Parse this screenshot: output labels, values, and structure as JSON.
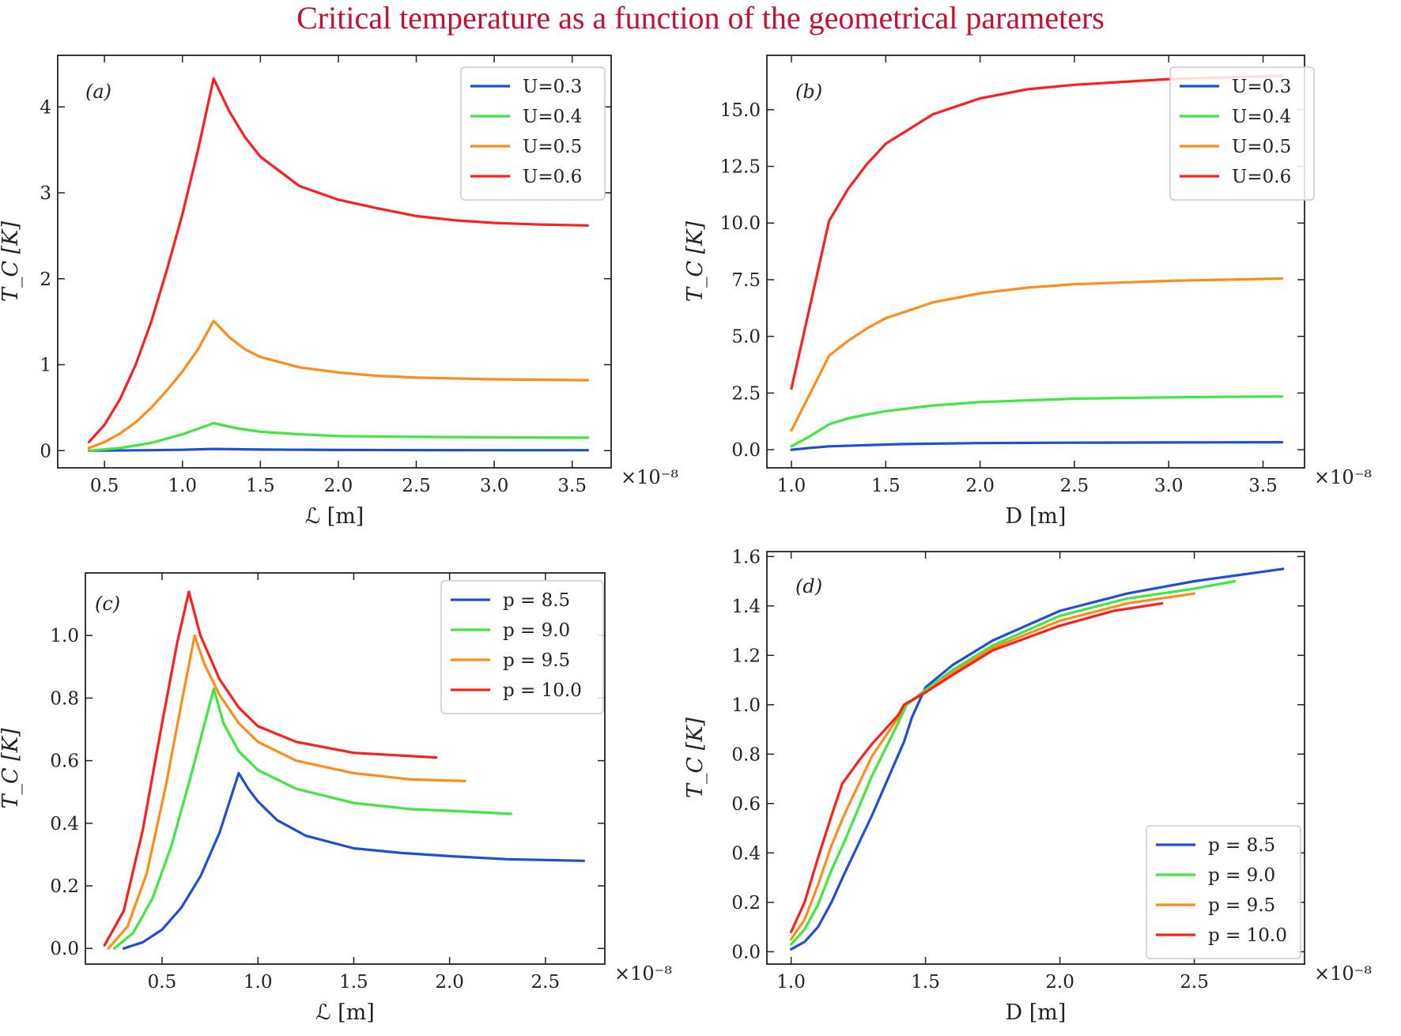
{
  "figure_title": "Critical temperature as a function of the geometrical parameters",
  "chart_data": [
    {
      "type": "line",
      "panel_label": "(a)",
      "xlabel": "ℒ [m]",
      "ylabel": "T_C [K]",
      "x_multiplier": "×10⁻⁸",
      "xlim": [
        0.2,
        3.75
      ],
      "ylim": [
        -0.2,
        4.6
      ],
      "xticks": [
        0.5,
        1.0,
        1.5,
        2.0,
        2.5,
        3.0,
        3.5
      ],
      "yticks": [
        0,
        1,
        2,
        3,
        4
      ],
      "xtick_labels": [
        "0.5",
        "1.0",
        "1.5",
        "2.0",
        "2.5",
        "3.0",
        "3.5"
      ],
      "ytick_labels": [
        "0",
        "1",
        "2",
        "3",
        "4"
      ],
      "legend_position": "top-right",
      "series": [
        {
          "name": "U=0.3",
          "color": "#1f4fd6",
          "points": [
            [
              0.4,
              0.0
            ],
            [
              0.8,
              0.005
            ],
            [
              1.0,
              0.01
            ],
            [
              1.2,
              0.02
            ],
            [
              1.5,
              0.012
            ],
            [
              2.0,
              0.008
            ],
            [
              2.5,
              0.006
            ],
            [
              3.0,
              0.005
            ],
            [
              3.6,
              0.005
            ]
          ]
        },
        {
          "name": "U=0.4",
          "color": "#3ee83e",
          "points": [
            [
              0.4,
              0.0
            ],
            [
              0.6,
              0.03
            ],
            [
              0.8,
              0.09
            ],
            [
              1.0,
              0.19
            ],
            [
              1.2,
              0.32
            ],
            [
              1.35,
              0.26
            ],
            [
              1.5,
              0.22
            ],
            [
              1.75,
              0.19
            ],
            [
              2.0,
              0.17
            ],
            [
              2.5,
              0.16
            ],
            [
              3.0,
              0.155
            ],
            [
              3.6,
              0.15
            ]
          ]
        },
        {
          "name": "U=0.5",
          "color": "#ff8c1a",
          "points": [
            [
              0.4,
              0.03
            ],
            [
              0.5,
              0.1
            ],
            [
              0.6,
              0.2
            ],
            [
              0.7,
              0.33
            ],
            [
              0.8,
              0.5
            ],
            [
              0.9,
              0.7
            ],
            [
              1.0,
              0.92
            ],
            [
              1.1,
              1.18
            ],
            [
              1.2,
              1.51
            ],
            [
              1.3,
              1.32
            ],
            [
              1.4,
              1.18
            ],
            [
              1.5,
              1.09
            ],
            [
              1.75,
              0.97
            ],
            [
              2.0,
              0.91
            ],
            [
              2.25,
              0.87
            ],
            [
              2.5,
              0.85
            ],
            [
              3.0,
              0.83
            ],
            [
              3.6,
              0.82
            ]
          ]
        },
        {
          "name": "U=0.6",
          "color": "#ff1e1e",
          "points": [
            [
              0.4,
              0.1
            ],
            [
              0.5,
              0.3
            ],
            [
              0.6,
              0.6
            ],
            [
              0.7,
              1.0
            ],
            [
              0.8,
              1.5
            ],
            [
              0.9,
              2.1
            ],
            [
              1.0,
              2.75
            ],
            [
              1.1,
              3.5
            ],
            [
              1.2,
              4.33
            ],
            [
              1.3,
              3.95
            ],
            [
              1.4,
              3.65
            ],
            [
              1.5,
              3.42
            ],
            [
              1.75,
              3.08
            ],
            [
              2.0,
              2.92
            ],
            [
              2.25,
              2.82
            ],
            [
              2.5,
              2.73
            ],
            [
              2.75,
              2.68
            ],
            [
              3.0,
              2.65
            ],
            [
              3.3,
              2.63
            ],
            [
              3.6,
              2.62
            ]
          ]
        }
      ]
    },
    {
      "type": "line",
      "panel_label": "(b)",
      "xlabel": "D [m]",
      "ylabel": "T_C [K]",
      "x_multiplier": "×10⁻⁸",
      "xlim": [
        0.87,
        3.72
      ],
      "ylim": [
        -0.8,
        17.4
      ],
      "xticks": [
        1.0,
        1.5,
        2.0,
        2.5,
        3.0,
        3.5
      ],
      "yticks": [
        0.0,
        2.5,
        5.0,
        7.5,
        10.0,
        12.5,
        15.0
      ],
      "xtick_labels": [
        "1.0",
        "1.5",
        "2.0",
        "2.5",
        "3.0",
        "3.5"
      ],
      "ytick_labels": [
        "0.0",
        "2.5",
        "5.0",
        "7.5",
        "10.0",
        "12.5",
        "15.0"
      ],
      "legend_position": "top-right",
      "series": [
        {
          "name": "U=0.3",
          "color": "#1f4fd6",
          "points": [
            [
              1.0,
              0.0
            ],
            [
              1.1,
              0.08
            ],
            [
              1.2,
              0.15
            ],
            [
              1.4,
              0.2
            ],
            [
              1.6,
              0.25
            ],
            [
              2.0,
              0.29
            ],
            [
              2.5,
              0.31
            ],
            [
              3.0,
              0.32
            ],
            [
              3.6,
              0.33
            ]
          ]
        },
        {
          "name": "U=0.4",
          "color": "#3ee83e",
          "points": [
            [
              1.0,
              0.15
            ],
            [
              1.1,
              0.6
            ],
            [
              1.2,
              1.12
            ],
            [
              1.3,
              1.38
            ],
            [
              1.4,
              1.55
            ],
            [
              1.5,
              1.7
            ],
            [
              1.75,
              1.95
            ],
            [
              2.0,
              2.1
            ],
            [
              2.5,
              2.25
            ],
            [
              3.0,
              2.31
            ],
            [
              3.6,
              2.35
            ]
          ]
        },
        {
          "name": "U=0.5",
          "color": "#ff8c1a",
          "points": [
            [
              1.0,
              0.85
            ],
            [
              1.1,
              2.5
            ],
            [
              1.2,
              4.15
            ],
            [
              1.3,
              4.8
            ],
            [
              1.4,
              5.35
            ],
            [
              1.5,
              5.8
            ],
            [
              1.75,
              6.5
            ],
            [
              2.0,
              6.9
            ],
            [
              2.25,
              7.15
            ],
            [
              2.5,
              7.3
            ],
            [
              3.0,
              7.45
            ],
            [
              3.6,
              7.55
            ]
          ]
        },
        {
          "name": "U=0.6",
          "color": "#ff1e1e",
          "points": [
            [
              1.0,
              2.7
            ],
            [
              1.1,
              6.4
            ],
            [
              1.2,
              10.1
            ],
            [
              1.3,
              11.5
            ],
            [
              1.4,
              12.6
            ],
            [
              1.5,
              13.5
            ],
            [
              1.75,
              14.8
            ],
            [
              2.0,
              15.5
            ],
            [
              2.25,
              15.9
            ],
            [
              2.5,
              16.1
            ],
            [
              3.0,
              16.35
            ],
            [
              3.6,
              16.5
            ]
          ]
        }
      ]
    },
    {
      "type": "line",
      "panel_label": "(c)",
      "xlabel": "ℒ [m]",
      "ylabel": "T_C [K]",
      "x_multiplier": "×10⁻⁸",
      "xlim": [
        0.1,
        2.81
      ],
      "ylim": [
        -0.05,
        1.2
      ],
      "xticks": [
        0.5,
        1.0,
        1.5,
        2.0,
        2.5
      ],
      "yticks": [
        0.0,
        0.2,
        0.4,
        0.6,
        0.8,
        1.0
      ],
      "xtick_labels": [
        "0.5",
        "1.0",
        "1.5",
        "2.0",
        "2.5"
      ],
      "ytick_labels": [
        "0.0",
        "0.2",
        "0.4",
        "0.6",
        "0.8",
        "1.0"
      ],
      "legend_position": "top-right",
      "series": [
        {
          "name": "p = 8.5",
          "color": "#1f4fd6",
          "points": [
            [
              0.3,
              0.0
            ],
            [
              0.4,
              0.02
            ],
            [
              0.5,
              0.06
            ],
            [
              0.6,
              0.13
            ],
            [
              0.7,
              0.23
            ],
            [
              0.8,
              0.37
            ],
            [
              0.9,
              0.56
            ],
            [
              0.95,
              0.51
            ],
            [
              1.0,
              0.47
            ],
            [
              1.1,
              0.41
            ],
            [
              1.25,
              0.36
            ],
            [
              1.5,
              0.32
            ],
            [
              1.75,
              0.305
            ],
            [
              2.0,
              0.295
            ],
            [
              2.3,
              0.285
            ],
            [
              2.7,
              0.28
            ]
          ]
        },
        {
          "name": "p = 9.0",
          "color": "#3ee83e",
          "points": [
            [
              0.25,
              0.0
            ],
            [
              0.35,
              0.05
            ],
            [
              0.45,
              0.16
            ],
            [
              0.55,
              0.33
            ],
            [
              0.65,
              0.55
            ],
            [
              0.77,
              0.83
            ],
            [
              0.82,
              0.72
            ],
            [
              0.9,
              0.63
            ],
            [
              1.0,
              0.57
            ],
            [
              1.2,
              0.51
            ],
            [
              1.5,
              0.465
            ],
            [
              1.8,
              0.445
            ],
            [
              2.0,
              0.44
            ],
            [
              2.32,
              0.43
            ]
          ]
        },
        {
          "name": "p = 9.5",
          "color": "#ff8c1a",
          "points": [
            [
              0.22,
              0.0
            ],
            [
              0.32,
              0.07
            ],
            [
              0.42,
              0.24
            ],
            [
              0.52,
              0.52
            ],
            [
              0.6,
              0.78
            ],
            [
              0.67,
              1.0
            ],
            [
              0.72,
              0.91
            ],
            [
              0.8,
              0.81
            ],
            [
              0.9,
              0.72
            ],
            [
              1.0,
              0.66
            ],
            [
              1.2,
              0.6
            ],
            [
              1.5,
              0.56
            ],
            [
              1.8,
              0.54
            ],
            [
              2.08,
              0.535
            ]
          ]
        },
        {
          "name": "p = 10.0",
          "color": "#ff1e1e",
          "points": [
            [
              0.2,
              0.01
            ],
            [
              0.3,
              0.12
            ],
            [
              0.4,
              0.38
            ],
            [
              0.5,
              0.72
            ],
            [
              0.58,
              0.98
            ],
            [
              0.64,
              1.14
            ],
            [
              0.7,
              1.0
            ],
            [
              0.8,
              0.86
            ],
            [
              0.9,
              0.77
            ],
            [
              1.0,
              0.71
            ],
            [
              1.2,
              0.66
            ],
            [
              1.5,
              0.625
            ],
            [
              1.93,
              0.61
            ]
          ]
        }
      ]
    },
    {
      "type": "line",
      "panel_label": "(d)",
      "xlabel": "D [m]",
      "ylabel": "T_C [K]",
      "x_multiplier": "×10⁻⁸",
      "xlim": [
        0.91,
        2.91
      ],
      "ylim": [
        -0.05,
        1.62
      ],
      "xticks": [
        1.0,
        1.5,
        2.0,
        2.5
      ],
      "yticks": [
        0.0,
        0.2,
        0.4,
        0.6,
        0.8,
        1.0,
        1.2,
        1.4,
        1.6
      ],
      "xtick_labels": [
        "1.0",
        "1.5",
        "2.0",
        "2.5"
      ],
      "ytick_labels": [
        "0.0",
        "0.2",
        "0.4",
        "0.6",
        "0.8",
        "1.0",
        "1.2",
        "1.4",
        "1.6"
      ],
      "legend_position": "bottom-right",
      "series": [
        {
          "name": "p = 8.5",
          "color": "#1f4fd6",
          "points": [
            [
              1.0,
              0.01
            ],
            [
              1.05,
              0.04
            ],
            [
              1.1,
              0.1
            ],
            [
              1.15,
              0.2
            ],
            [
              1.2,
              0.32
            ],
            [
              1.3,
              0.55
            ],
            [
              1.42,
              0.85
            ],
            [
              1.45,
              0.95
            ],
            [
              1.5,
              1.07
            ],
            [
              1.6,
              1.16
            ],
            [
              1.75,
              1.26
            ],
            [
              2.0,
              1.38
            ],
            [
              2.25,
              1.45
            ],
            [
              2.5,
              1.5
            ],
            [
              2.83,
              1.55
            ]
          ]
        },
        {
          "name": "p = 9.0",
          "color": "#3ee83e",
          "points": [
            [
              1.0,
              0.03
            ],
            [
              1.05,
              0.09
            ],
            [
              1.1,
              0.19
            ],
            [
              1.15,
              0.33
            ],
            [
              1.2,
              0.45
            ],
            [
              1.3,
              0.71
            ],
            [
              1.4,
              0.93
            ],
            [
              1.43,
              1.0
            ],
            [
              1.5,
              1.06
            ],
            [
              1.6,
              1.14
            ],
            [
              1.75,
              1.24
            ],
            [
              2.0,
              1.36
            ],
            [
              2.25,
              1.43
            ],
            [
              2.5,
              1.47
            ],
            [
              2.65,
              1.5
            ]
          ]
        },
        {
          "name": "p = 9.5",
          "color": "#ff8c1a",
          "points": [
            [
              1.0,
              0.05
            ],
            [
              1.05,
              0.13
            ],
            [
              1.1,
              0.27
            ],
            [
              1.15,
              0.43
            ],
            [
              1.2,
              0.56
            ],
            [
              1.3,
              0.79
            ],
            [
              1.4,
              0.95
            ],
            [
              1.42,
              1.0
            ],
            [
              1.5,
              1.05
            ],
            [
              1.6,
              1.13
            ],
            [
              1.75,
              1.23
            ],
            [
              2.0,
              1.34
            ],
            [
              2.25,
              1.41
            ],
            [
              2.5,
              1.45
            ]
          ]
        },
        {
          "name": "p = 10.0",
          "color": "#ff1e1e",
          "points": [
            [
              1.0,
              0.08
            ],
            [
              1.05,
              0.2
            ],
            [
              1.1,
              0.38
            ],
            [
              1.15,
              0.55
            ],
            [
              1.19,
              0.68
            ],
            [
              1.25,
              0.77
            ],
            [
              1.3,
              0.84
            ],
            [
              1.4,
              0.96
            ],
            [
              1.42,
              1.0
            ],
            [
              1.5,
              1.05
            ],
            [
              1.6,
              1.12
            ],
            [
              1.75,
              1.22
            ],
            [
              2.0,
              1.32
            ],
            [
              2.2,
              1.38
            ],
            [
              2.38,
              1.41
            ]
          ]
        }
      ]
    }
  ]
}
